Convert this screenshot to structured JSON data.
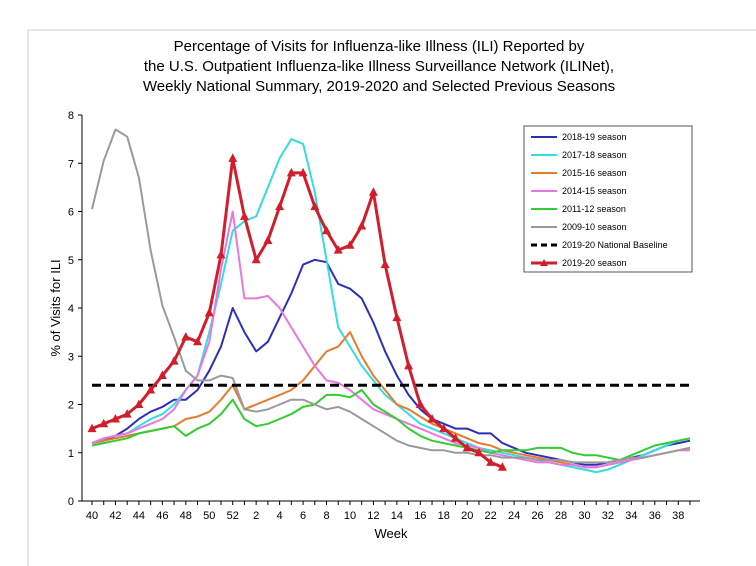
{
  "chart_data": {
    "type": "line",
    "title": [
      "Percentage of Visits for Influenza-like Illness (ILI) Reported by",
      "the U.S. Outpatient Influenza-like Illness Surveillance Network (ILINet),",
      "Weekly National Summary, 2019-2020 and Selected Previous Seasons"
    ],
    "xlabel": "Week",
    "ylabel": "% of Visits for ILI",
    "ylim": [
      0,
      8
    ],
    "y_ticks": [
      "0",
      "1",
      "2",
      "3",
      "4",
      "5",
      "6",
      "7",
      "8"
    ],
    "x_weeks": [
      40,
      41,
      42,
      43,
      44,
      45,
      46,
      47,
      48,
      49,
      50,
      51,
      52,
      1,
      2,
      3,
      4,
      5,
      6,
      7,
      8,
      9,
      10,
      11,
      12,
      13,
      14,
      15,
      16,
      17,
      18,
      19,
      20,
      21,
      22,
      23,
      24,
      25,
      26,
      27,
      28,
      29,
      30,
      31,
      32,
      33,
      34,
      35,
      36,
      37,
      38,
      39
    ],
    "x_tick_labels": [
      "40",
      "42",
      "44",
      "46",
      "48",
      "50",
      "52",
      "2",
      "4",
      "6",
      "8",
      "10",
      "12",
      "14",
      "16",
      "18",
      "20",
      "22",
      "24",
      "26",
      "28",
      "30",
      "32",
      "34",
      "36",
      "38"
    ],
    "baseline": {
      "name": "2019-20 National Baseline",
      "value": 2.4,
      "color": "#000000"
    },
    "series": [
      {
        "name": "2018-19 season",
        "color": "#2e2eb8",
        "values": [
          1.2,
          1.25,
          1.35,
          1.5,
          1.7,
          1.85,
          1.95,
          2.1,
          2.1,
          2.3,
          2.7,
          3.2,
          4.0,
          3.5,
          3.1,
          3.3,
          3.8,
          4.3,
          4.9,
          5.0,
          4.95,
          4.5,
          4.4,
          4.2,
          3.7,
          3.1,
          2.6,
          2.2,
          1.9,
          1.7,
          1.6,
          1.5,
          1.5,
          1.4,
          1.4,
          1.2,
          1.1,
          1.0,
          0.95,
          0.9,
          0.85,
          0.8,
          0.75,
          0.75,
          0.8,
          0.85,
          0.9,
          0.95,
          1.05,
          1.15,
          1.2,
          1.25
        ]
      },
      {
        "name": "2017-18 season",
        "color": "#33dde0",
        "values": [
          1.2,
          1.3,
          1.35,
          1.4,
          1.55,
          1.7,
          1.8,
          2.0,
          2.3,
          2.6,
          3.5,
          4.5,
          5.6,
          5.8,
          5.9,
          6.5,
          7.1,
          7.5,
          7.4,
          6.4,
          5.0,
          3.6,
          3.2,
          2.8,
          2.5,
          2.2,
          2.0,
          1.8,
          1.6,
          1.5,
          1.4,
          1.3,
          1.2,
          1.1,
          1.05,
          1.0,
          0.95,
          0.9,
          0.85,
          0.8,
          0.75,
          0.7,
          0.65,
          0.6,
          0.65,
          0.75,
          0.85,
          0.95,
          1.05,
          1.15,
          1.25,
          1.3
        ]
      },
      {
        "name": "2015-16 season",
        "color": "#e87a2e",
        "values": [
          1.2,
          1.25,
          1.3,
          1.35,
          1.4,
          1.45,
          1.5,
          1.55,
          1.7,
          1.75,
          1.85,
          2.1,
          2.4,
          1.9,
          2.0,
          2.1,
          2.2,
          2.3,
          2.5,
          2.8,
          3.1,
          3.2,
          3.5,
          3.0,
          2.6,
          2.3,
          2.0,
          1.9,
          1.75,
          1.6,
          1.5,
          1.4,
          1.3,
          1.2,
          1.15,
          1.05,
          1.0,
          0.95,
          0.9,
          0.85,
          0.8,
          0.75,
          0.7,
          0.7,
          0.75,
          0.8,
          0.85,
          0.9,
          0.95,
          1.0,
          1.05,
          1.1
        ]
      },
      {
        "name": "2014-15 season",
        "color": "#e878e0",
        "values": [
          1.2,
          1.3,
          1.35,
          1.4,
          1.5,
          1.6,
          1.7,
          1.9,
          2.3,
          2.6,
          3.3,
          4.8,
          6.0,
          4.2,
          4.2,
          4.25,
          4.0,
          3.6,
          3.2,
          2.8,
          2.5,
          2.45,
          2.3,
          2.1,
          1.9,
          1.8,
          1.7,
          1.6,
          1.5,
          1.4,
          1.3,
          1.2,
          1.15,
          1.1,
          1.0,
          0.95,
          0.9,
          0.85,
          0.8,
          0.8,
          0.75,
          0.75,
          0.7,
          0.7,
          0.75,
          0.8,
          0.85,
          0.9,
          0.95,
          1.0,
          1.05,
          1.05
        ]
      },
      {
        "name": "2011-12 season",
        "color": "#33cc33",
        "values": [
          1.15,
          1.2,
          1.25,
          1.3,
          1.4,
          1.45,
          1.5,
          1.55,
          1.35,
          1.5,
          1.6,
          1.8,
          2.1,
          1.7,
          1.55,
          1.6,
          1.7,
          1.8,
          1.95,
          2.0,
          2.2,
          2.2,
          2.15,
          2.3,
          2.0,
          1.85,
          1.7,
          1.5,
          1.35,
          1.25,
          1.2,
          1.15,
          1.1,
          1.05,
          1.0,
          1.05,
          1.05,
          1.05,
          1.1,
          1.1,
          1.1,
          1.0,
          0.95,
          0.95,
          0.9,
          0.85,
          0.95,
          1.05,
          1.15,
          1.2,
          1.25,
          1.3
        ]
      },
      {
        "name": "2009-10 season",
        "color": "#9a9a9a",
        "values": [
          6.05,
          7.05,
          7.7,
          7.55,
          6.7,
          5.2,
          4.05,
          3.4,
          2.7,
          2.5,
          2.5,
          2.6,
          2.55,
          1.9,
          1.85,
          1.9,
          2.0,
          2.1,
          2.1,
          2.0,
          1.9,
          1.95,
          1.85,
          1.7,
          1.55,
          1.4,
          1.25,
          1.15,
          1.1,
          1.05,
          1.05,
          1.0,
          1.0,
          0.95,
          0.95,
          0.9,
          0.9,
          0.9,
          0.85,
          0.85,
          0.85,
          0.8,
          0.8,
          0.8,
          0.8,
          0.85,
          0.9,
          0.9,
          0.95,
          1.0,
          1.05,
          1.1
        ]
      },
      {
        "name": "2019-20 season",
        "color": "#d21e2c",
        "markers": true,
        "values": [
          1.5,
          1.6,
          1.7,
          1.8,
          2.0,
          2.3,
          2.6,
          2.9,
          3.4,
          3.3,
          3.9,
          5.1,
          7.1,
          5.9,
          5.0,
          5.4,
          6.1,
          6.8,
          6.8,
          6.1,
          5.6,
          5.2,
          5.3,
          5.7,
          6.4,
          4.9,
          3.8,
          2.8,
          2.0,
          1.7,
          1.5,
          1.3,
          1.1,
          1.0,
          0.8,
          0.7
        ]
      }
    ]
  }
}
